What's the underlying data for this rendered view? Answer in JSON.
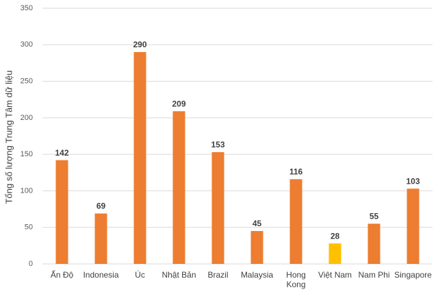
{
  "chart_data": {
    "type": "bar",
    "y_label": "Tổng số lượng Trung Tâm dữ liệu",
    "categories": [
      "Ấn Độ",
      "Indonesia",
      "Úc",
      "Nhật Bản",
      "Brazil",
      "Malaysia",
      "Hong Kong",
      "Việt Nam",
      "Nam Phi",
      "Singapore"
    ],
    "values": [
      142,
      69,
      290,
      209,
      153,
      45,
      116,
      28,
      55,
      103
    ],
    "colors": [
      "#ed7d31",
      "#ed7d31",
      "#ed7d31",
      "#ed7d31",
      "#ed7d31",
      "#ed7d31",
      "#ed7d31",
      "#ffc000",
      "#ed7d31",
      "#ed7d31"
    ],
    "ylim": [
      0,
      350
    ],
    "yticks": [
      0,
      50,
      100,
      150,
      200,
      250,
      300,
      350
    ],
    "grid": true
  }
}
